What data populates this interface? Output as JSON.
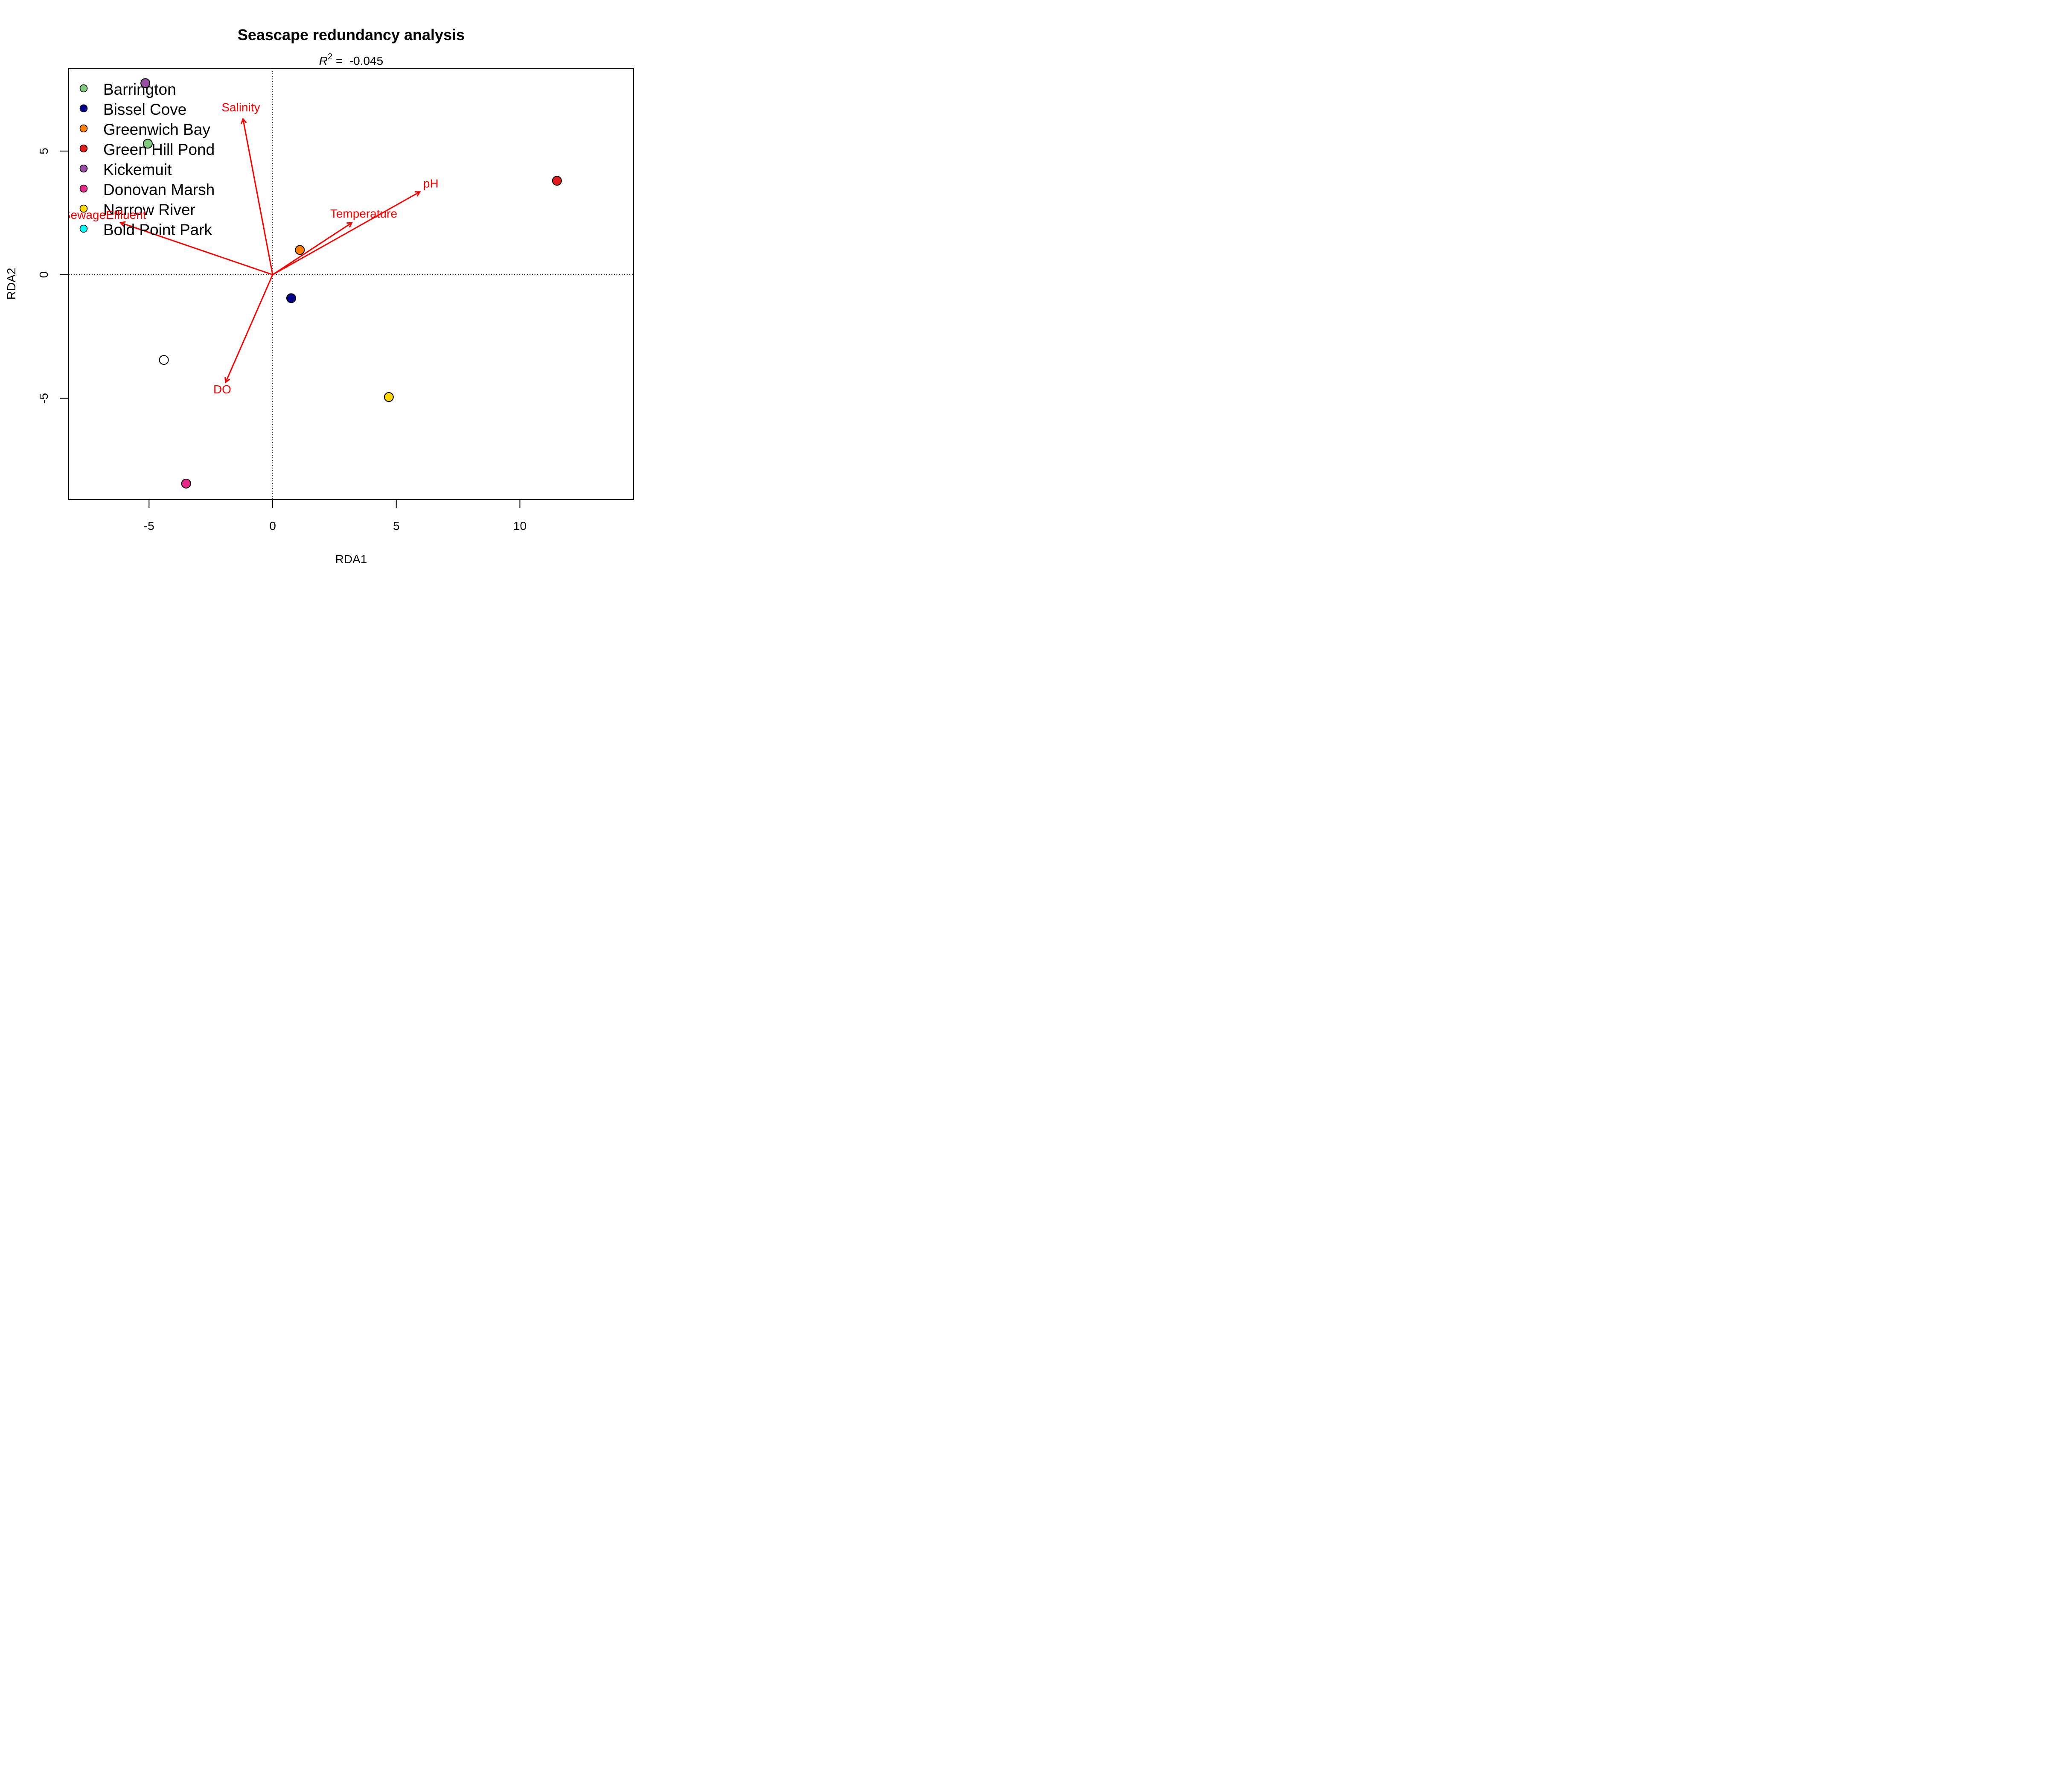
{
  "chart_data": {
    "type": "scatter",
    "title": "Seascape redundancy analysis",
    "subtitle": {
      "symbol": "R",
      "superscript": "2",
      "text": " =  -0.045"
    },
    "xlabel": "RDA1",
    "ylabel": "RDA2",
    "xlim": [
      -8.25,
      14.6
    ],
    "ylim": [
      -9.1,
      8.35
    ],
    "xticks": [
      -5,
      0,
      5,
      10
    ],
    "xtick_labels": [
      "-5",
      "0",
      "5",
      "10"
    ],
    "yticks": [
      -5,
      0,
      5
    ],
    "ytick_labels": [
      "-5",
      "0",
      "5"
    ],
    "reference_lines": {
      "x": 0,
      "y": 0,
      "style": "dotted"
    },
    "legend": {
      "placement": "top-left",
      "entries": [
        {
          "label": "Barrington",
          "color": "#7fc97f"
        },
        {
          "label": "Bissel Cove",
          "color": "#00008b"
        },
        {
          "label": "Greenwich Bay",
          "color": "#ff7f00"
        },
        {
          "label": "Green Hill Pond",
          "color": "#e41a1c"
        },
        {
          "label": "Kickemuit",
          "color": "#984ea3"
        },
        {
          "label": "Donovan Marsh",
          "color": "#e7298a"
        },
        {
          "label": "Narrow River",
          "color": "#ffd700"
        },
        {
          "label": "Bold Point Park",
          "color": "#00ffff"
        }
      ]
    },
    "points": [
      {
        "x": -5.15,
        "y": 7.75,
        "color": "#984ea3"
      },
      {
        "x": -5.05,
        "y": 5.3,
        "color": "#7fc97f"
      },
      {
        "x": 11.5,
        "y": 3.8,
        "color": "#e41a1c"
      },
      {
        "x": 1.1,
        "y": 1.0,
        "color": "#ff7f00"
      },
      {
        "x": 0.75,
        "y": -0.95,
        "color": "#00008b"
      },
      {
        "x": -4.4,
        "y": -3.45,
        "color": "#ffffff"
      },
      {
        "x": 4.7,
        "y": -4.95,
        "color": "#ffd700"
      },
      {
        "x": -3.5,
        "y": -8.45,
        "color": "#e7298a"
      }
    ],
    "biplot_arrows": {
      "color": "#ff0000",
      "vectors": [
        {
          "name": "Salinity",
          "x": -1.2,
          "y": 6.3
        },
        {
          "name": "pH",
          "x": 5.95,
          "y": 3.35
        },
        {
          "name": "Temperature",
          "x": 3.2,
          "y": 2.1
        },
        {
          "name": "SewageEffluent",
          "x": -6.15,
          "y": 2.1
        },
        {
          "name": "DO",
          "x": -1.9,
          "y": -4.35
        }
      ]
    }
  }
}
